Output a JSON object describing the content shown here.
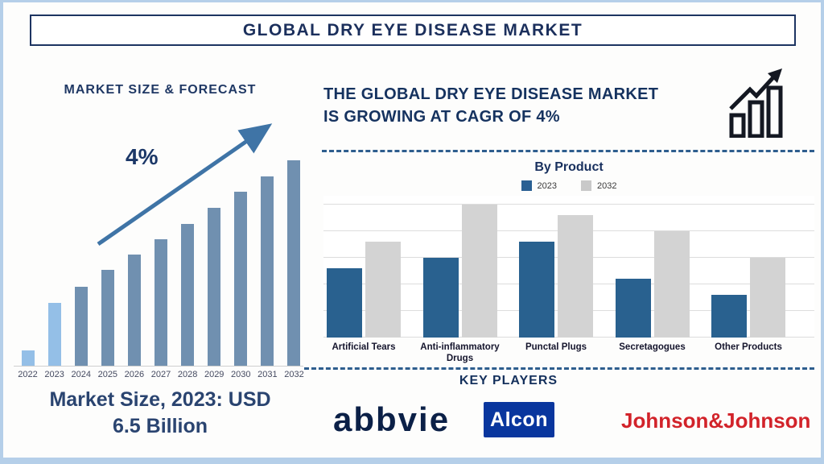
{
  "page": {
    "title": "GLOBAL DRY EYE DISEASE MARKET",
    "colors": {
      "navy_text": "#1b2f5c",
      "outer_border_blue": "#b5cfe9",
      "dashed_divider_blue": "#2e5e8e",
      "arrow_steel_blue": "#3f74a6"
    }
  },
  "left_panel": {
    "heading": "MARKET SIZE & FORECAST",
    "cagr_label": "4%",
    "caption_line1": "Market Size, 2023: USD",
    "caption_line2": "6.5 Billion"
  },
  "right_panel": {
    "headline_line1": "THE GLOBAL DRY EYE DISEASE MARKET",
    "headline_line2": "IS GROWING AT CAGR OF 4%",
    "growth_icon": "bar-chart-growth-icon",
    "by_product_title": "By Product",
    "legend": [
      {
        "label": "2023",
        "color": "#2a6093"
      },
      {
        "label": "2032",
        "color": "#c9c9c9"
      }
    ],
    "key_players_heading": "KEY PLAYERS",
    "key_players": [
      {
        "name": "abbvie",
        "text_color": "#0b2047",
        "style": "wordmark"
      },
      {
        "name": "Alcon",
        "text_color": "#ffffff",
        "bg_color": "#09369e",
        "style": "boxed"
      },
      {
        "name": "Johnson&Johnson",
        "text_color": "#d2232a",
        "style": "wordmark"
      }
    ]
  },
  "chart_data": [
    {
      "id": "market_size_forecast",
      "type": "bar",
      "title": "MARKET SIZE & FORECAST",
      "categories": [
        "2022",
        "2023",
        "2024",
        "2025",
        "2026",
        "2027",
        "2028",
        "2029",
        "2030",
        "2031",
        "2032"
      ],
      "values_relative_pct": [
        7.5,
        30.5,
        38.6,
        46.5,
        54,
        61.5,
        69.2,
        76.9,
        84.6,
        92.2,
        100
      ],
      "value_axis": "unlabeled (relative heights, % of tallest bar)",
      "known_values": {
        "2023_usd_billion": 6.5
      },
      "annotation": "4% CAGR trend arrow rising left-to-right",
      "bar_colors": {
        "2022": "#94bfe7",
        "2023": "#94bfe7",
        "default": "#7090b0"
      },
      "grid": false,
      "legend_position": "none"
    },
    {
      "id": "by_product",
      "type": "bar",
      "title": "By Product",
      "categories": [
        "Artificial Tears",
        "Anti-inflammatory Drugs",
        "Punctal Plugs",
        "Secretagogues",
        "Other Products"
      ],
      "series": [
        {
          "name": "2023",
          "color": "#29618f",
          "values": [
            2.6,
            3.0,
            3.6,
            2.2,
            1.6
          ]
        },
        {
          "name": "2032",
          "color": "#d3d3d3",
          "values": [
            3.6,
            5.0,
            4.6,
            4.0,
            3.0
          ]
        }
      ],
      "ylim": [
        0,
        5
      ],
      "value_axis": "unlabeled (relative units, gridline spacing = 1)",
      "grid": true,
      "legend_position": "top"
    }
  ]
}
